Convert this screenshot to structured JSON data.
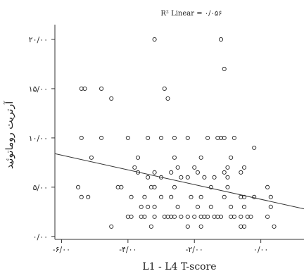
{
  "chart_data": {
    "type": "scatter",
    "title": "R² Linear = ۰/۰۵۶",
    "xlabel": "L1 - L4  T-score",
    "ylabel": "آرتریت روماتوئید",
    "xlim": [
      -6.2,
      1.3
    ],
    "ylim": [
      -0.3,
      21.5
    ],
    "x_ticks": [
      {
        "value": -6,
        "label": "-۶/۰۰"
      },
      {
        "value": -4,
        "label": "-۴/۰۰"
      },
      {
        "value": -2,
        "label": "-۲/۰۰"
      },
      {
        "value": 0,
        "label": "۰/۰۰"
      }
    ],
    "y_ticks": [
      {
        "value": 0,
        "label": "۰/۰۰"
      },
      {
        "value": 5,
        "label": "۵/۰۰"
      },
      {
        "value": 10,
        "label": "۱۰/۰۰"
      },
      {
        "value": 15,
        "label": "۱۵/۰۰"
      },
      {
        "value": 20,
        "label": "۲۰/۰۰"
      }
    ],
    "grid": false,
    "fit_line": {
      "x": [
        -6.2,
        1.3
      ],
      "y": [
        8.4,
        2.8
      ]
    },
    "points": [
      [
        -3.2,
        20
      ],
      [
        -1.2,
        20
      ],
      [
        -1.1,
        17
      ],
      [
        -5.4,
        15
      ],
      [
        -5.3,
        15
      ],
      [
        -4.8,
        15
      ],
      [
        -2.9,
        15
      ],
      [
        -4.5,
        14
      ],
      [
        -2.8,
        14
      ],
      [
        -5.4,
        10
      ],
      [
        -4.8,
        10
      ],
      [
        -4.0,
        10
      ],
      [
        -3.4,
        10
      ],
      [
        -3.0,
        10
      ],
      [
        -2.6,
        10
      ],
      [
        -2.2,
        10
      ],
      [
        -1.6,
        10
      ],
      [
        -1.3,
        10
      ],
      [
        -1.2,
        10
      ],
      [
        -1.1,
        10
      ],
      [
        -0.8,
        10
      ],
      [
        -0.2,
        9
      ],
      [
        -5.1,
        8
      ],
      [
        -3.7,
        8
      ],
      [
        -2.6,
        8
      ],
      [
        -1.8,
        8
      ],
      [
        -0.9,
        8
      ],
      [
        -3.8,
        7
      ],
      [
        -2.5,
        7
      ],
      [
        -2.0,
        7
      ],
      [
        -1.0,
        7
      ],
      [
        -0.5,
        7
      ],
      [
        -3.7,
        6.5
      ],
      [
        -3.2,
        6.5
      ],
      [
        -2.7,
        6.5
      ],
      [
        -1.9,
        6.5
      ],
      [
        -1.1,
        6.5
      ],
      [
        -0.6,
        6.5
      ],
      [
        -3.4,
        6
      ],
      [
        -3.0,
        6
      ],
      [
        -2.4,
        6
      ],
      [
        -2.2,
        6
      ],
      [
        -1.7,
        6
      ],
      [
        -1.4,
        6
      ],
      [
        -1.0,
        6
      ],
      [
        -5.5,
        5
      ],
      [
        -4.3,
        5
      ],
      [
        -4.2,
        5
      ],
      [
        -3.3,
        5
      ],
      [
        -3.2,
        5
      ],
      [
        -2.6,
        5
      ],
      [
        -1.5,
        5
      ],
      [
        -1.0,
        5
      ],
      [
        0.2,
        5
      ],
      [
        -5.4,
        4
      ],
      [
        -5.2,
        4
      ],
      [
        -3.9,
        4
      ],
      [
        -3.5,
        4
      ],
      [
        -3.0,
        4
      ],
      [
        -2.7,
        4
      ],
      [
        -2.1,
        4
      ],
      [
        -1.8,
        4
      ],
      [
        -1.1,
        4
      ],
      [
        -0.6,
        4
      ],
      [
        -0.5,
        4
      ],
      [
        -0.2,
        4
      ],
      [
        0.3,
        4
      ],
      [
        -3.6,
        3
      ],
      [
        -3.4,
        3
      ],
      [
        -3.2,
        3
      ],
      [
        -2.5,
        3
      ],
      [
        -1.9,
        3
      ],
      [
        -1.5,
        3
      ],
      [
        -0.9,
        3
      ],
      [
        -0.5,
        3
      ],
      [
        0.3,
        3
      ],
      [
        -4.0,
        2
      ],
      [
        -3.9,
        2
      ],
      [
        -3.6,
        2
      ],
      [
        -3.5,
        2
      ],
      [
        -3.2,
        2
      ],
      [
        -2.9,
        2
      ],
      [
        -2.8,
        2
      ],
      [
        -2.7,
        2
      ],
      [
        -2.6,
        2
      ],
      [
        -2.4,
        2
      ],
      [
        -2.2,
        2
      ],
      [
        -2.0,
        2
      ],
      [
        -1.8,
        2
      ],
      [
        -1.7,
        2
      ],
      [
        -1.6,
        2
      ],
      [
        -1.4,
        2
      ],
      [
        -1.3,
        2
      ],
      [
        -1.2,
        2
      ],
      [
        -0.9,
        2
      ],
      [
        -0.8,
        2
      ],
      [
        -0.6,
        2
      ],
      [
        -0.4,
        2
      ],
      [
        -0.3,
        2
      ],
      [
        0.2,
        2
      ],
      [
        -4.5,
        1
      ],
      [
        -3.3,
        1
      ],
      [
        -2.2,
        1
      ],
      [
        -1.8,
        1
      ],
      [
        -0.6,
        1
      ],
      [
        -0.5,
        1
      ],
      [
        0.4,
        1
      ]
    ]
  }
}
